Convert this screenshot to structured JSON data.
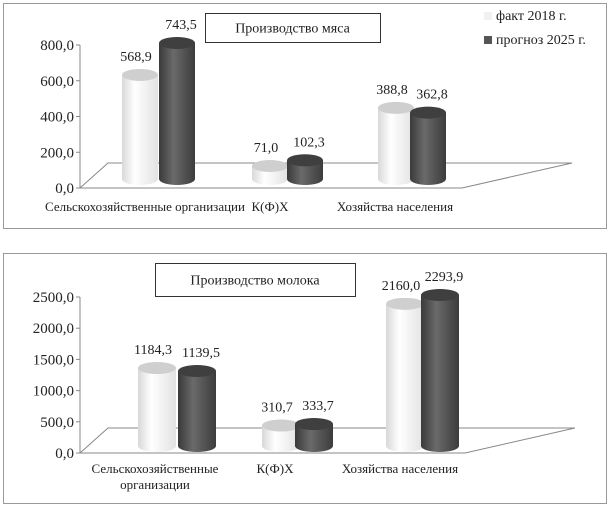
{
  "colors": {
    "fact": "#f4f4f4",
    "forecast": "#555555",
    "axis": "#888888"
  },
  "chart_data": [
    {
      "type": "bar",
      "title": "Производство мяса",
      "categories": [
        "Сельскохозяйственные организации",
        "К(Ф)Х",
        "Хозяйства населения"
      ],
      "series": [
        {
          "name": "факт 2018 г.",
          "values": [
            568.9,
            71.0,
            388.8
          ],
          "labels": [
            "568,9",
            "71,0",
            "388,8"
          ]
        },
        {
          "name": "прогноз 2025 г.",
          "values": [
            743.5,
            102.3,
            362.8
          ],
          "labels": [
            "743,5",
            "102,3",
            "362,8"
          ]
        }
      ],
      "ylim": [
        0,
        800
      ],
      "yticks": [
        "0,0",
        "200,0",
        "400,0",
        "600,0",
        "800,0"
      ],
      "legend": "top-right"
    },
    {
      "type": "bar",
      "title": "Производство молока",
      "categories": [
        "Сельскохозяйственные организации",
        "К(Ф)Х",
        "Хозяйства населения"
      ],
      "series": [
        {
          "name": "факт 2018 г.",
          "values": [
            1184.3,
            310.7,
            2160.0
          ],
          "labels": [
            "1184,3",
            "310,7",
            "2160,0"
          ]
        },
        {
          "name": "прогноз 2025 г.",
          "values": [
            1139.5,
            333.7,
            2293.9
          ],
          "labels": [
            "1139,5",
            "333,7",
            "2293,9"
          ]
        }
      ],
      "ylim": [
        0,
        2500
      ],
      "yticks": [
        "0,0",
        "500,0",
        "1000,0",
        "1500,0",
        "2000,0",
        "2500,0"
      ],
      "legend": "none"
    }
  ]
}
